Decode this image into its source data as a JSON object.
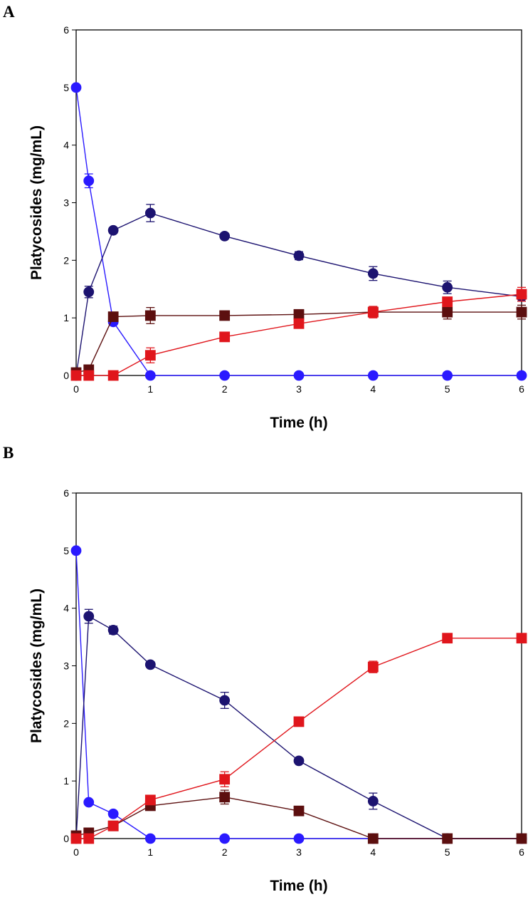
{
  "chart_data": [
    {
      "type": "line",
      "panel_label": "A",
      "xlabel": "Time (h)",
      "ylabel": "Platycosides (mg/mL)",
      "xlim": [
        0,
        6
      ],
      "ylim": [
        0,
        6
      ],
      "xticks": [
        "0",
        "1",
        "2",
        "3",
        "4",
        "5",
        "6"
      ],
      "yticks": [
        "0",
        "1",
        "2",
        "3",
        "4",
        "5",
        "6"
      ],
      "series": [
        {
          "name": "blue-circle",
          "marker": "circle",
          "color": "#2a1aff",
          "x": [
            0,
            0.17,
            0.5,
            1,
            2,
            3,
            4,
            5,
            6
          ],
          "y": [
            5.0,
            3.38,
            0.93,
            0.0,
            0.0,
            0.0,
            0.0,
            0.0,
            0.0
          ],
          "err": [
            0,
            0.12,
            0,
            0,
            0,
            0,
            0,
            0,
            0
          ]
        },
        {
          "name": "navy-circle",
          "marker": "circle",
          "color": "#1c1370",
          "x": [
            0,
            0.17,
            0.5,
            1,
            2,
            3,
            4,
            5,
            6
          ],
          "y": [
            0.0,
            1.45,
            2.52,
            2.82,
            2.42,
            2.08,
            1.77,
            1.53,
            1.37
          ],
          "err": [
            0,
            0.1,
            0.05,
            0.15,
            0.05,
            0.07,
            0.12,
            0.11,
            0.08
          ]
        },
        {
          "name": "darkred-square",
          "marker": "square",
          "color": "#5c0f0f",
          "x": [
            0,
            0.17,
            0.5,
            1,
            2,
            3,
            4,
            5,
            6
          ],
          "y": [
            0.05,
            0.1,
            1.02,
            1.04,
            1.04,
            1.06,
            1.1,
            1.1,
            1.1
          ],
          "err": [
            0,
            0,
            0,
            0.14,
            0.05,
            0.05,
            0.07,
            0.12,
            0.12
          ]
        },
        {
          "name": "red-square",
          "marker": "square",
          "color": "#e0161c",
          "x": [
            0,
            0.17,
            0.5,
            1,
            2,
            3,
            4,
            5,
            6
          ],
          "y": [
            0.0,
            0.0,
            0.0,
            0.35,
            0.67,
            0.9,
            1.1,
            1.28,
            1.41
          ],
          "err": [
            0,
            0,
            0,
            0.13,
            0.05,
            0.05,
            0.1,
            0.08,
            0.12
          ]
        }
      ]
    },
    {
      "type": "line",
      "panel_label": "B",
      "xlabel": "Time (h)",
      "ylabel": "Platycosides (mg/mL)",
      "xlim": [
        0,
        6
      ],
      "ylim": [
        0,
        6
      ],
      "xticks": [
        "0",
        "1",
        "2",
        "3",
        "4",
        "5",
        "6"
      ],
      "yticks": [
        "0",
        "1",
        "2",
        "3",
        "4",
        "5",
        "6"
      ],
      "series": [
        {
          "name": "blue-circle",
          "marker": "circle",
          "color": "#2a1aff",
          "x": [
            0,
            0.17,
            0.5,
            1,
            2,
            3,
            4,
            5,
            6
          ],
          "y": [
            5.0,
            0.63,
            0.43,
            0.0,
            0.0,
            0.0,
            0.0,
            0.0,
            0.0
          ],
          "err": [
            0,
            0.04,
            0.03,
            0,
            0,
            0,
            0,
            0,
            0
          ]
        },
        {
          "name": "navy-circle",
          "marker": "circle",
          "color": "#1c1370",
          "x": [
            0,
            0.17,
            0.5,
            1,
            2,
            3,
            4,
            5,
            6
          ],
          "y": [
            0.0,
            3.86,
            3.62,
            3.02,
            2.4,
            1.35,
            0.65,
            0.0,
            0.0
          ],
          "err": [
            0,
            0.12,
            0.07,
            0.05,
            0.14,
            0.04,
            0.14,
            0,
            0
          ]
        },
        {
          "name": "darkred-square",
          "marker": "square",
          "color": "#5c0f0f",
          "x": [
            0,
            0.17,
            0.5,
            1,
            2,
            3,
            4,
            5,
            6
          ],
          "y": [
            0.05,
            0.1,
            0.22,
            0.57,
            0.72,
            0.48,
            0.0,
            0.0,
            0.0
          ],
          "err": [
            0,
            0,
            0,
            0.05,
            0.12,
            0.05,
            0.06,
            0,
            0
          ]
        },
        {
          "name": "red-square",
          "marker": "square",
          "color": "#e0161c",
          "x": [
            0,
            0.17,
            0.5,
            1,
            2,
            3,
            4,
            5,
            6
          ],
          "y": [
            0.0,
            0.0,
            0.22,
            0.67,
            1.03,
            2.03,
            2.98,
            3.48,
            3.48
          ],
          "err": [
            0,
            0,
            0,
            0.05,
            0.13,
            0.05,
            0.1,
            0.05,
            0.05
          ]
        }
      ]
    }
  ]
}
